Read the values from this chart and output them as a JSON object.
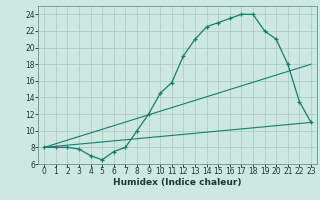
{
  "xlabel": "Humidex (Indice chaleur)",
  "bg_color": "#cce8e0",
  "grid_color": "#aacfc8",
  "line_color": "#1a7a6e",
  "xlim": [
    -0.5,
    23.5
  ],
  "ylim": [
    6,
    25
  ],
  "xticks": [
    0,
    1,
    2,
    3,
    4,
    5,
    6,
    7,
    8,
    9,
    10,
    11,
    12,
    13,
    14,
    15,
    16,
    17,
    18,
    19,
    20,
    21,
    22,
    23
  ],
  "yticks": [
    6,
    8,
    10,
    12,
    14,
    16,
    18,
    20,
    22,
    24
  ],
  "curve1_x": [
    0,
    1,
    2,
    3,
    4,
    5,
    6,
    7,
    8,
    9,
    10,
    11,
    12,
    13,
    14,
    15,
    16,
    17,
    18,
    19,
    20,
    21,
    22,
    23
  ],
  "curve1_y": [
    8.0,
    8.0,
    8.0,
    7.8,
    7.0,
    6.5,
    7.5,
    8.0,
    10.0,
    12.0,
    14.5,
    15.8,
    19.0,
    21.0,
    22.5,
    23.0,
    23.5,
    24.0,
    24.0,
    22.0,
    21.0,
    18.0,
    13.5,
    11.0
  ],
  "line2_x": [
    0,
    23
  ],
  "line2_y": [
    8.0,
    18.0
  ],
  "line3_x": [
    0,
    23
  ],
  "line3_y": [
    8.0,
    11.0
  ],
  "xlabel_fontsize": 6.5,
  "tick_fontsize": 5.5
}
